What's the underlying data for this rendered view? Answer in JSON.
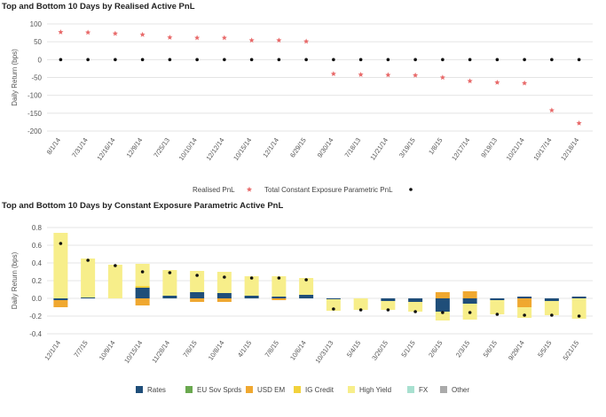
{
  "chart_data": [
    {
      "type": "scatter",
      "title": "Top and Bottom 10 Days by Realised Active PnL",
      "ylabel": "Daily Return (bps)",
      "ylim": [
        -200,
        100
      ],
      "yticks": [
        100,
        50,
        0,
        -50,
        -100,
        -150,
        -200
      ],
      "categories": [
        "8/1/14",
        "7/31/14",
        "12/16/14",
        "12/9/14",
        "7/25/13",
        "10/10/14",
        "12/12/14",
        "10/15/14",
        "12/1/14",
        "6/29/15",
        "9/30/14",
        "7/18/13",
        "11/21/14",
        "3/19/15",
        "1/8/15",
        "12/17/14",
        "9/19/13",
        "10/21/14",
        "10/17/14",
        "12/18/14"
      ],
      "series": [
        {
          "name": "Realised PnL",
          "marker": "star",
          "color": "#e86a6a",
          "values": [
            77,
            76,
            73,
            70,
            62,
            61,
            61,
            54,
            54,
            51,
            -40,
            -42,
            -43,
            -44,
            -50,
            -60,
            -64,
            -66,
            -142,
            -178
          ]
        },
        {
          "name": "Total Constant Exposure Parametric PnL",
          "marker": "dot",
          "color": "#111111",
          "values": [
            0,
            0,
            0,
            0,
            0,
            0,
            0,
            0,
            0,
            0,
            0,
            0,
            0,
            0,
            0,
            0,
            0,
            0,
            0,
            0
          ]
        }
      ],
      "grid": "horizontal",
      "legend": "bottom"
    },
    {
      "type": "bar",
      "stacked": true,
      "title": "Top and Bottom 10 Days by Constant Exposure Parametric Active PnL",
      "ylabel": "Daily Return (bps)",
      "ylim": [
        -0.4,
        0.8
      ],
      "yticks": [
        0.8,
        0.6,
        0.4,
        0.2,
        0.0,
        -0.2,
        -0.4
      ],
      "categories": [
        "12/1/14",
        "7/7/15",
        "10/9/14",
        "10/15/14",
        "11/28/14",
        "7/6/15",
        "10/8/14",
        "4/1/15",
        "7/8/15",
        "10/6/14",
        "10/31/13",
        "5/4/15",
        "3/26/15",
        "5/1/15",
        "2/6/15",
        "2/3/15",
        "5/6/15",
        "9/29/14",
        "5/5/15",
        "5/21/15"
      ],
      "series": [
        {
          "name": "Rates",
          "color": "#1f4e79",
          "values": [
            -0.02,
            0.01,
            0.0,
            0.12,
            0.03,
            0.07,
            0.06,
            0.03,
            0.02,
            0.04,
            -0.01,
            0.0,
            -0.03,
            -0.04,
            -0.15,
            -0.06,
            -0.02,
            0.02,
            -0.03,
            0.02
          ]
        },
        {
          "name": "EU Sov Sprds",
          "color": "#6aa84f",
          "values": [
            0,
            0,
            0,
            0,
            0,
            0,
            0,
            0,
            0,
            0,
            0,
            0,
            0,
            0,
            0,
            0,
            0,
            0,
            0,
            0
          ]
        },
        {
          "name": "USD EM",
          "color": "#f0a830",
          "values": [
            -0.08,
            0.0,
            0.0,
            -0.08,
            0.0,
            -0.04,
            -0.04,
            0.0,
            -0.02,
            0.0,
            0.0,
            0.0,
            0.0,
            0.0,
            0.07,
            0.08,
            0.0,
            -0.1,
            0.0,
            0.0
          ]
        },
        {
          "name": "IG Credit",
          "color": "#f2d23c",
          "values": [
            0.0,
            0.0,
            0.0,
            0.02,
            0.0,
            0.0,
            0.0,
            0.0,
            0.0,
            0.0,
            0.0,
            0.0,
            0.0,
            0.0,
            0.0,
            0.0,
            0.0,
            0.0,
            0.0,
            0.0
          ]
        },
        {
          "name": "High Yield",
          "color": "#f7ee8a",
          "values": [
            0.74,
            0.44,
            0.38,
            0.25,
            0.29,
            0.24,
            0.24,
            0.22,
            0.23,
            0.19,
            -0.13,
            -0.13,
            -0.1,
            -0.11,
            -0.1,
            -0.18,
            -0.16,
            -0.12,
            -0.16,
            -0.23
          ]
        },
        {
          "name": "FX",
          "color": "#a8e0d0",
          "values": [
            0,
            0,
            0,
            0,
            0,
            0,
            0,
            0,
            0,
            0,
            0,
            0,
            0,
            0,
            0,
            0,
            0,
            0,
            0,
            0
          ]
        },
        {
          "name": "Other",
          "color": "#aaaaaa",
          "values": [
            0,
            0,
            0,
            0,
            0,
            0,
            0,
            0,
            0,
            0,
            0,
            0,
            0,
            0,
            0,
            0,
            0,
            0,
            0,
            0
          ]
        }
      ],
      "total_markers": {
        "marker": "dot",
        "color": "#111111",
        "values": [
          0.62,
          0.43,
          0.37,
          0.3,
          0.29,
          0.26,
          0.24,
          0.23,
          0.23,
          0.21,
          -0.12,
          -0.13,
          -0.13,
          -0.15,
          -0.16,
          -0.16,
          -0.18,
          -0.19,
          -0.19,
          -0.2
        ]
      },
      "grid": "horizontal",
      "legend": "bottom"
    }
  ]
}
